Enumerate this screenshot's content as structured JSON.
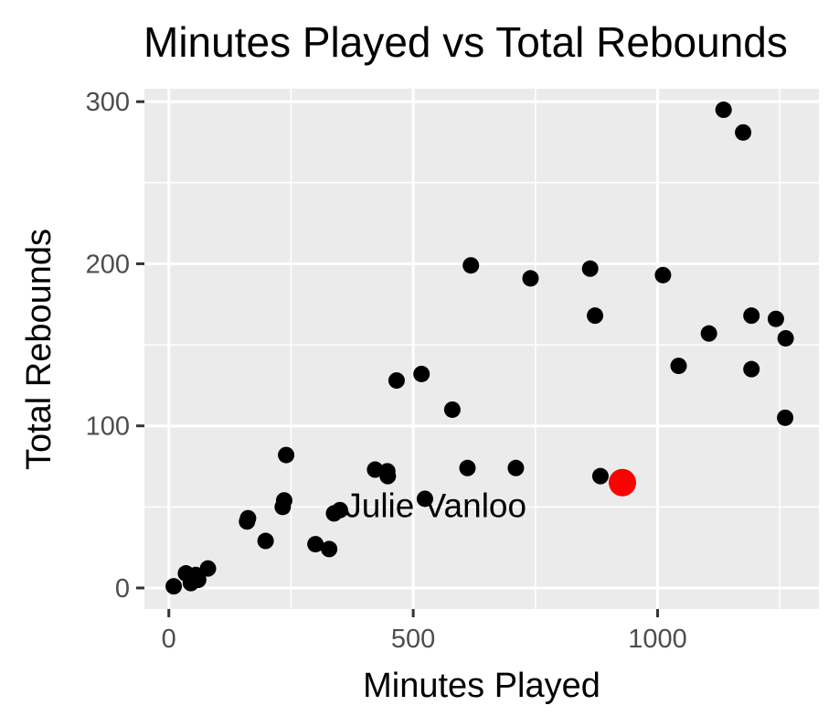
{
  "chart_data": {
    "type": "scatter",
    "title": "Minutes Played vs Total Rebounds",
    "xlabel": "Minutes Played",
    "ylabel": "Total Rebounds",
    "xlim": [
      -50,
      1330
    ],
    "ylim": [
      -13,
      308
    ],
    "x_ticks": [
      0,
      500,
      1000
    ],
    "x_tick_labels": [
      "0",
      "500",
      "1000"
    ],
    "y_ticks": [
      0,
      100,
      200,
      300
    ],
    "y_tick_labels": [
      "0",
      "100",
      "200",
      "300"
    ],
    "x_minor": [
      250,
      750,
      1250
    ],
    "y_minor": [
      50,
      150,
      250
    ],
    "grid": true,
    "point_color": "#000000",
    "highlight_color": "#ff0000",
    "panel_color": "#ebebeb",
    "grid_color": "#ffffff",
    "points": [
      {
        "x": 10,
        "y": 1
      },
      {
        "x": 35,
        "y": 9
      },
      {
        "x": 45,
        "y": 3
      },
      {
        "x": 55,
        "y": 8
      },
      {
        "x": 60,
        "y": 5
      },
      {
        "x": 80,
        "y": 12
      },
      {
        "x": 160,
        "y": 41
      },
      {
        "x": 162,
        "y": 43
      },
      {
        "x": 198,
        "y": 29
      },
      {
        "x": 233,
        "y": 50
      },
      {
        "x": 236,
        "y": 54
      },
      {
        "x": 240,
        "y": 82
      },
      {
        "x": 300,
        "y": 27
      },
      {
        "x": 328,
        "y": 24
      },
      {
        "x": 338,
        "y": 46
      },
      {
        "x": 350,
        "y": 48
      },
      {
        "x": 422,
        "y": 73
      },
      {
        "x": 447,
        "y": 72
      },
      {
        "x": 448,
        "y": 69
      },
      {
        "x": 466,
        "y": 128
      },
      {
        "x": 517,
        "y": 132
      },
      {
        "x": 524,
        "y": 55
      },
      {
        "x": 580,
        "y": 110
      },
      {
        "x": 611,
        "y": 74
      },
      {
        "x": 618,
        "y": 199
      },
      {
        "x": 710,
        "y": 74
      },
      {
        "x": 740,
        "y": 191
      },
      {
        "x": 862,
        "y": 197
      },
      {
        "x": 872,
        "y": 168
      },
      {
        "x": 883,
        "y": 69
      },
      {
        "x": 1011,
        "y": 193
      },
      {
        "x": 1043,
        "y": 137
      },
      {
        "x": 1105,
        "y": 157
      },
      {
        "x": 1135,
        "y": 295
      },
      {
        "x": 1175,
        "y": 281
      },
      {
        "x": 1192,
        "y": 168
      },
      {
        "x": 1192,
        "y": 135
      },
      {
        "x": 1242,
        "y": 166
      },
      {
        "x": 1262,
        "y": 154
      },
      {
        "x": 1261,
        "y": 105
      }
    ],
    "highlight": {
      "x": 928,
      "y": 65
    },
    "annotation": {
      "text": "Julie Vanloo",
      "x": 360,
      "y": 51
    }
  }
}
